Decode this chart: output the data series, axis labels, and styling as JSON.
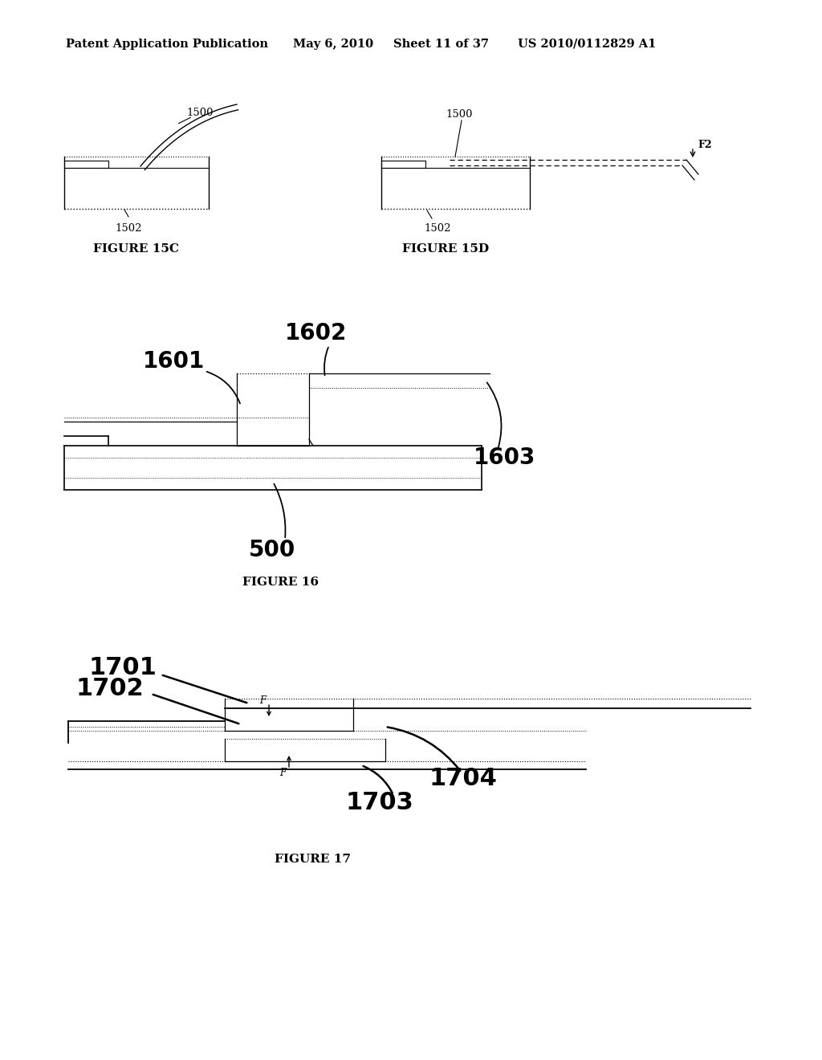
{
  "bg_color": "#ffffff",
  "header_text": "Patent Application Publication",
  "header_date": "May 6, 2010",
  "header_sheet": "Sheet 11 of 37",
  "header_patent": "US 2010/0112829 A1",
  "fig15c_label": "FIGURE 15C",
  "fig15d_label": "FIGURE 15D",
  "fig16_label": "FIGURE 16",
  "fig17_label": "FIGURE 17",
  "line_color": "#000000"
}
